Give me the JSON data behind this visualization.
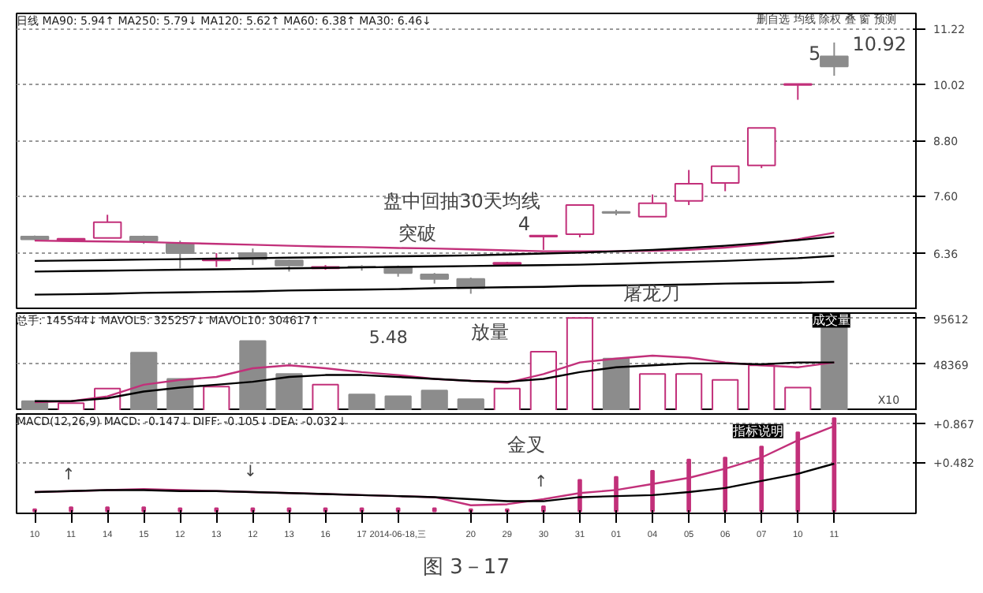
{
  "chart_data": [
    {
      "type": "candlestick",
      "subtitle": "日线 MA90: 5.94↑ MA250: 5.79↓ MA120: 5.62↑ MA60: 6.38↑ MA30: 6.46↓",
      "ohlc": [
        [
          6.72,
          6.74,
          6.64,
          6.66
        ],
        [
          6.64,
          6.68,
          6.62,
          6.67
        ],
        [
          6.69,
          7.19,
          6.69,
          7.03
        ],
        [
          6.72,
          6.74,
          6.56,
          6.63
        ],
        [
          6.56,
          6.63,
          6.03,
          6.36
        ],
        [
          6.2,
          6.36,
          6.06,
          6.23
        ],
        [
          6.36,
          6.46,
          6.1,
          6.23
        ],
        [
          6.2,
          6.22,
          5.96,
          6.09
        ],
        [
          6.03,
          6.1,
          6.0,
          6.06
        ],
        [
          6.07,
          6.1,
          5.98,
          6.05
        ],
        [
          6.06,
          6.09,
          5.85,
          5.93
        ],
        [
          5.9,
          5.93,
          5.7,
          5.8
        ],
        [
          5.8,
          5.83,
          5.48,
          5.6
        ],
        [
          6.12,
          6.17,
          6.1,
          6.15
        ],
        [
          6.72,
          6.75,
          6.43,
          6.74
        ],
        [
          6.77,
          7.41,
          6.7,
          7.4
        ],
        [
          7.25,
          7.3,
          7.18,
          7.23
        ],
        [
          7.15,
          7.63,
          7.15,
          7.44
        ],
        [
          7.49,
          8.16,
          7.4,
          7.86
        ],
        [
          7.88,
          8.24,
          7.7,
          8.24
        ],
        [
          8.26,
          9.07,
          8.2,
          9.07
        ],
        [
          10.0,
          10.02,
          9.68,
          10.02
        ],
        [
          10.62,
          10.92,
          10.2,
          10.4
        ]
      ],
      "colors": [
        "#8c8c8c",
        "#c2307a",
        "#c2307a",
        "#8c8c8c",
        "#8c8c8c",
        "#c2307a",
        "#8c8c8c",
        "#8c8c8c",
        "#c2307a",
        "#8c8c8c",
        "#8c8c8c",
        "#8c8c8c",
        "#8c8c8c",
        "#c2307a",
        "#c2307a",
        "#c2307a",
        "#8c8c8c",
        "#c2307a",
        "#c2307a",
        "#c2307a",
        "#c2307a",
        "#c2307a",
        "#8c8c8c"
      ],
      "series": [
        {
          "type": "line",
          "color": "#c2307a",
          "values": [
            6.63,
            6.62,
            6.61,
            6.6,
            6.58,
            6.56,
            6.54,
            6.52,
            6.5,
            6.49,
            6.47,
            6.46,
            6.44,
            6.42,
            6.4,
            6.4,
            6.4,
            6.41,
            6.43,
            6.48,
            6.55,
            6.66,
            6.8
          ]
        },
        {
          "type": "line",
          "color": "#000000",
          "values": [
            6.19,
            6.2,
            6.21,
            6.22,
            6.23,
            6.24,
            6.25,
            6.26,
            6.27,
            6.28,
            6.29,
            6.3,
            6.31,
            6.33,
            6.35,
            6.37,
            6.4,
            6.43,
            6.47,
            6.52,
            6.58,
            6.64,
            6.72
          ]
        },
        {
          "type": "line",
          "color": "#000000",
          "values": [
            5.96,
            5.97,
            5.98,
            5.99,
            6.0,
            6.01,
            6.02,
            6.03,
            6.04,
            6.05,
            6.06,
            6.07,
            6.08,
            6.09,
            6.1,
            6.11,
            6.13,
            6.15,
            6.17,
            6.19,
            6.22,
            6.25,
            6.3
          ]
        },
        {
          "type": "line",
          "color": "#000000",
          "values": [
            5.46,
            5.47,
            5.48,
            5.5,
            5.51,
            5.52,
            5.53,
            5.55,
            5.56,
            5.57,
            5.58,
            5.6,
            5.61,
            5.62,
            5.63,
            5.65,
            5.66,
            5.67,
            5.68,
            5.7,
            5.71,
            5.72,
            5.74
          ]
        }
      ],
      "ylim": [
        5.13,
        11.55
      ],
      "yticks": [
        6.36,
        {
          "value": 7.6,
          "label": "7.60"
        },
        {
          "value": 8.8,
          "label": "8.80"
        },
        10.02,
        11.22
      ],
      "grid": "y",
      "tick_labels": "y",
      "annotations": [
        "盘中回抽30天均线",
        "突破",
        "4",
        "屠龙刀",
        "5",
        "10.92",
        "删自选 均线 除权 叠 窗 预测"
      ]
    },
    {
      "type": "bar",
      "subtitle": "总手: 145544↓ MAVOL5: 325257↓ MAVOL10: 304617↑",
      "values": [
        10000,
        8000,
        23000,
        60000,
        33000,
        25000,
        72000,
        38000,
        27000,
        17000,
        15000,
        21000,
        12000,
        23000,
        61000,
        96000,
        54000,
        38000,
        38000,
        32000,
        47000,
        24000,
        86000
      ],
      "colors": [
        "#8c8c8c",
        "#c2307a",
        "#c2307a",
        "#8c8c8c",
        "#8c8c8c",
        "#c2307a",
        "#8c8c8c",
        "#8c8c8c",
        "#c2307a",
        "#8c8c8c",
        "#8c8c8c",
        "#8c8c8c",
        "#8c8c8c",
        "#c2307a",
        "#c2307a",
        "#c2307a",
        "#8c8c8c",
        "#c2307a",
        "#c2307a",
        "#c2307a",
        "#c2307a",
        "#c2307a",
        "#8c8c8c"
      ],
      "series": [
        {
          "type": "line",
          "color": "#c2307a",
          "values": [
            9000,
            10000,
            15000,
            27000,
            32000,
            35000,
            44000,
            47000,
            44000,
            40000,
            37000,
            33000,
            31000,
            29000,
            38000,
            50000,
            54000,
            57000,
            55000,
            50000,
            47000,
            45000,
            50000
          ]
        },
        {
          "type": "line",
          "color": "#000000",
          "values": [
            10000,
            10000,
            13000,
            20000,
            24000,
            27000,
            30000,
            35000,
            37000,
            37000,
            35000,
            33000,
            31000,
            30000,
            33000,
            40000,
            45000,
            47000,
            49000,
            49000,
            48000,
            50000,
            50000
          ]
        }
      ],
      "ylim": [
        0,
        101000
      ],
      "yticks": [
        48369,
        95612
      ],
      "grid": "y",
      "tick_labels": "y",
      "annotations": [
        "5.48",
        "放量",
        "成交量",
        "X10"
      ]
    },
    {
      "type": "bar",
      "title": "图 3－17",
      "subtitle": "MACD(12,26,9) MACD: -0.147↓ DIFF: -0.105↓ DEA: -0.032↓",
      "categories": [
        "10",
        "11",
        "14",
        "15",
        "12",
        "13",
        "12",
        "13",
        "16",
        "17",
        "2014-06-18,三",
        null,
        "20",
        "29",
        "30",
        "31",
        "01",
        "04",
        "05",
        "06",
        "07",
        "10",
        "11"
      ],
      "values": [
        0.02,
        0.04,
        0.04,
        0.04,
        0.03,
        0.03,
        0.03,
        0.03,
        0.03,
        0.03,
        0.03,
        0.03,
        0.02,
        0.02,
        0.05,
        0.31,
        0.34,
        0.4,
        0.51,
        0.53,
        0.64,
        0.78,
        0.92
      ],
      "color": "#c2307a",
      "series": [
        {
          "type": "line",
          "color": "#c2307a",
          "values": [
            0.19,
            0.2,
            0.21,
            0.22,
            0.21,
            0.2,
            0.19,
            0.18,
            0.17,
            0.16,
            0.15,
            0.14,
            0.06,
            0.07,
            0.12,
            0.18,
            0.21,
            0.27,
            0.33,
            0.42,
            0.53,
            0.7,
            0.84
          ]
        },
        {
          "type": "line",
          "color": "#000000",
          "values": [
            0.19,
            0.2,
            0.21,
            0.21,
            0.2,
            0.2,
            0.19,
            0.18,
            0.17,
            0.16,
            0.15,
            0.14,
            0.12,
            0.1,
            0.1,
            0.14,
            0.15,
            0.16,
            0.19,
            0.23,
            0.3,
            0.37,
            0.47
          ]
        }
      ],
      "ylim": [
        -0.02,
        0.96
      ],
      "yticks": [
        {
          "value": 0.867,
          "label": "+0.867"
        },
        {
          "value": 0.482,
          "label": "+0.482"
        }
      ],
      "grid": "y",
      "annotations": [
        "金叉",
        "指标说明",
        "↑",
        "↓",
        "↑"
      ]
    }
  ]
}
